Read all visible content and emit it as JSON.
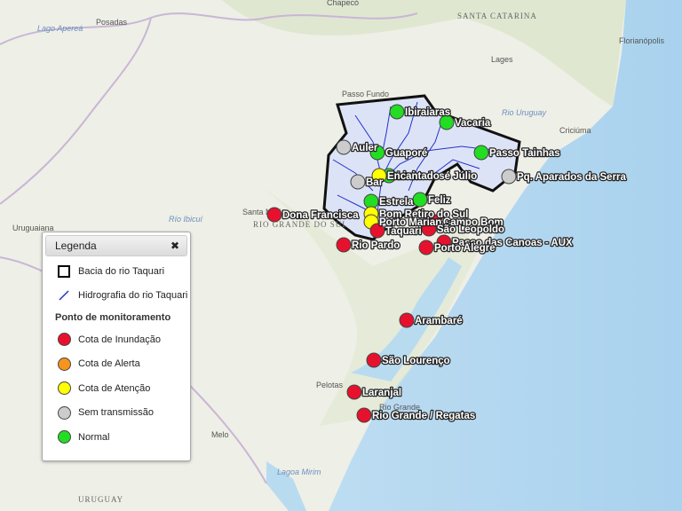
{
  "base_map": {
    "places": [
      "Chapecó",
      "Posadas",
      "Lago Apereá",
      "SANTA CATARINA",
      "Lages",
      "Florianópolis",
      "Passo Fundo",
      "Rio Uruguay",
      "Criciúma",
      "Santa Maria",
      "RIO GRANDE DO SUL",
      "Río Ibicuí",
      "Uruguaiana",
      "Pelotas",
      "Rio Grande",
      "Melo",
      "Lagoa Mirim",
      "URUGUAY"
    ]
  },
  "legend": {
    "title": "Legenda",
    "close": "✖",
    "layers": [
      "Bacia do rio Taquari",
      "Hidrografia do rio Taquari"
    ],
    "group_title": "Ponto de monitoramento",
    "status_items": [
      {
        "label": "Cota de Inundação",
        "color": "#e8112d"
      },
      {
        "label": "Cota de Alerta",
        "color": "#f7941d"
      },
      {
        "label": "Cota de Atenção",
        "color": "#ffff00"
      },
      {
        "label": "Sem transmissão",
        "color": "#cccccc"
      },
      {
        "label": "Normal",
        "color": "#22dd22"
      }
    ]
  },
  "stations": [
    {
      "name": "Ibiraiaras",
      "status": 4
    },
    {
      "name": "Vacaria",
      "status": 4
    },
    {
      "name": "Auler",
      "status": 3
    },
    {
      "name": "Guaporé",
      "status": 4
    },
    {
      "name": "Passo Tainhas",
      "status": 4
    },
    {
      "name": "Linha José Júlio",
      "status": 4
    },
    {
      "name": "Bar",
      "status": 3
    },
    {
      "name": "Encantado",
      "status": 2
    },
    {
      "name": "Pq. Aparados da Serra",
      "status": 3
    },
    {
      "name": "Estrela",
      "status": 4
    },
    {
      "name": "Feliz",
      "status": 4
    },
    {
      "name": "Dona Francisca",
      "status": 0
    },
    {
      "name": "Bom Retiro do Sul",
      "status": 2
    },
    {
      "name": "Porto Mariante",
      "status": 2
    },
    {
      "name": "Campo Bom",
      "status": 0
    },
    {
      "name": "São Leopoldo",
      "status": 0
    },
    {
      "name": "Taquari",
      "status": 0
    },
    {
      "name": "Passo das Canoas - AUX",
      "status": 0
    },
    {
      "name": "Rio Pardo",
      "status": 0
    },
    {
      "name": "Porto Alegre",
      "status": 0
    },
    {
      "name": "Arambaré",
      "status": 0
    },
    {
      "name": "São Lourenço",
      "status": 0
    },
    {
      "name": "Laranjal",
      "status": 0
    },
    {
      "name": "Rio Grande / Regatas",
      "status": 0
    }
  ]
}
